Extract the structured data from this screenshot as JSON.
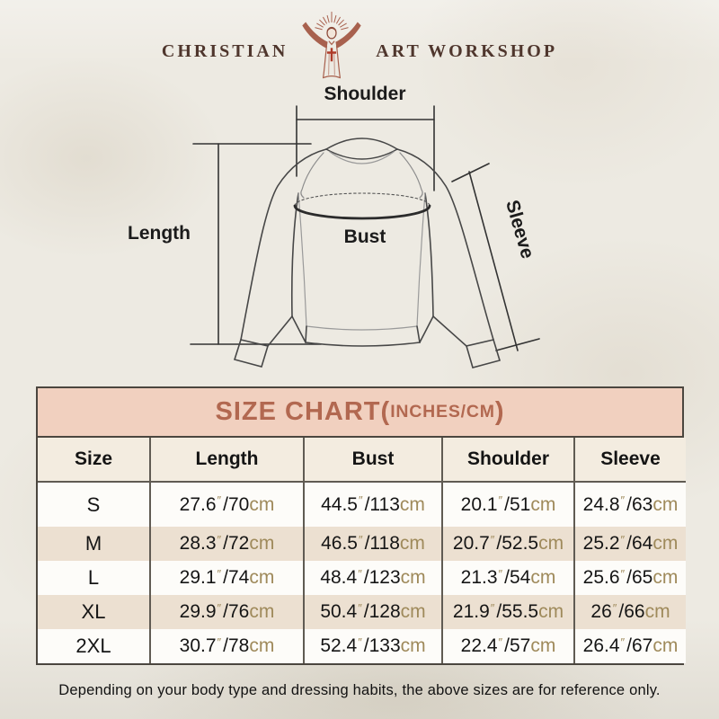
{
  "brand": {
    "name_left": "CHRISTIAN",
    "name_right": "ART WORKSHOP"
  },
  "diagram": {
    "shoulder_label": "Shoulder",
    "length_label": "Length",
    "bust_label": "Bust",
    "sleeve_label": "Sleeve"
  },
  "table": {
    "title_main": "SIZE CHART(",
    "title_units": "INCHES/CM",
    "title_close": ")"
  },
  "chart_data": {
    "type": "table",
    "title": "SIZE CHART(INCHES/CM)",
    "columns": [
      "Size",
      "Length",
      "Bust",
      "Shoulder",
      "Sleeve"
    ],
    "rows": [
      [
        "S",
        "27.6\"/70cm",
        "44.5\"/113cm",
        "20.1\"/51cm",
        "24.8\"/63cm"
      ],
      [
        "M",
        "28.3\"/72cm",
        "46.5\"/118cm",
        "20.7\"/52.5cm",
        "25.2\"/64cm"
      ],
      [
        "L",
        "29.1\"/74cm",
        "48.4\"/123cm",
        "21.3\"/54cm",
        "25.6\"/65cm"
      ],
      [
        "XL",
        "29.9\"/76cm",
        "50.4\"/128cm",
        "21.9\"/55.5cm",
        "26\"/66cm"
      ],
      [
        "2XL",
        "30.7\"/78cm",
        "52.4\"/133cm",
        "22.4\"/57cm",
        "26.4\"/67cm"
      ]
    ]
  },
  "footer_note": "Depending on your body type and dressing habits, the above sizes are for reference only.",
  "colors": {
    "page_background": "#edeae2",
    "title_band": "#f1d0bf",
    "title_text": "#b26850",
    "beige_row": "#ece0d1",
    "white_row": "#fdfcf9",
    "unit_text": "#9f8a5b",
    "brand_text": "#4f362d",
    "brand_figure": "#a8614e",
    "cross_red": "#ae3a28",
    "table_border": "#4b463f"
  }
}
